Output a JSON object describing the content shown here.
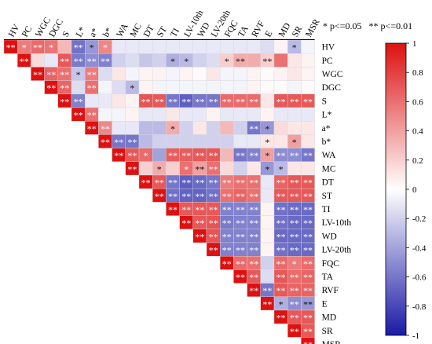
{
  "significance_legend": {
    "one_star": "* p<=0.05",
    "two_star": "** p<=0.01"
  },
  "colors": {
    "neg": "#1a1aa6",
    "mid": "#ffffff",
    "pos": "#dd1111"
  },
  "chart_data": {
    "type": "heatmap",
    "title": "",
    "variables": [
      "HV",
      "PC",
      "WGC",
      "DGC",
      "S",
      "L*",
      "a*",
      "b*",
      "WA",
      "MC",
      "DT",
      "ST",
      "TI",
      "LV-10th",
      "WD",
      "LV-20th",
      "FQC",
      "TA",
      "RVF",
      "E",
      "MD",
      "SR",
      "MSR"
    ],
    "colorbar": {
      "min": -1,
      "max": 1,
      "ticks": [
        1,
        0.8,
        0.6,
        0.4,
        0.2,
        0,
        -0.2,
        -0.4,
        -0.6,
        -0.8,
        -1
      ],
      "tick_labels": [
        "1",
        "0.8",
        "0.6",
        "0.4",
        "0.2",
        "0",
        "-0.2",
        "-0.4",
        "-0.6",
        "-0.8",
        "-1"
      ]
    },
    "matrix": [
      [
        1,
        0.55,
        0.62,
        0.58,
        0.3,
        -0.62,
        -0.45,
        0.5,
        -0.1,
        -0.1,
        -0.1,
        -0.1,
        -0.1,
        -0.1,
        -0.1,
        -0.1,
        -0.1,
        -0.1,
        -0.1,
        -0.15,
        0.05,
        -0.3,
        -0.05
      ],
      [
        null,
        1,
        0.15,
        -0.1,
        0.7,
        -0.58,
        -0.5,
        -0.55,
        -0.2,
        -0.15,
        -0.25,
        -0.2,
        -0.35,
        -0.3,
        -0.2,
        -0.15,
        0.2,
        0.35,
        0.35,
        0.2,
        0.6,
        0.1,
        0.05
      ],
      [
        null,
        null,
        1,
        0.65,
        0.6,
        -0.25,
        0.55,
        -0.15,
        0.1,
        -0.05,
        0.05,
        0.05,
        -0.05,
        0.05,
        0.02,
        0.1,
        -0.05,
        -0.05,
        0.05,
        0.02,
        0.05,
        0.1,
        0.05
      ],
      [
        null,
        null,
        null,
        1,
        0.65,
        -0.15,
        0.6,
        -0.05,
        -0.15,
        -0.3,
        0.05,
        -0.05,
        -0.05,
        -0.05,
        -0.05,
        -0.05,
        -0.05,
        -0.05,
        0.05,
        0.02,
        0.02,
        -0.05,
        0.02
      ],
      [
        null,
        null,
        null,
        null,
        1,
        -0.55,
        -0.1,
        -0.1,
        0.1,
        0.05,
        0.72,
        0.7,
        -0.6,
        -0.7,
        -0.6,
        -0.6,
        0.62,
        0.62,
        0.62,
        0.1,
        0.7,
        0.7,
        0.7
      ],
      [
        null,
        null,
        null,
        null,
        null,
        1,
        0.6,
        -0.05,
        -0.05,
        0.05,
        -0.1,
        -0.1,
        0.1,
        -0.1,
        -0.1,
        0.05,
        -0.1,
        -0.1,
        -0.1,
        0.05,
        -0.1,
        -0.1,
        -0.1
      ],
      [
        null,
        null,
        null,
        null,
        null,
        null,
        1,
        0.5,
        -0.1,
        -0.1,
        -0.3,
        -0.3,
        0.35,
        -0.2,
        0.1,
        -0.2,
        0.3,
        -0.2,
        -0.6,
        -0.45,
        0.15,
        0.1,
        0.1
      ],
      [
        null,
        null,
        null,
        null,
        null,
        null,
        null,
        1,
        -0.6,
        -0.6,
        -0.3,
        -0.2,
        -0.2,
        -0.2,
        -0.2,
        -0.2,
        -0.2,
        -0.1,
        -0.1,
        0.1,
        0.1,
        0.4,
        0.1
      ],
      [
        null,
        null,
        null,
        null,
        null,
        null,
        null,
        null,
        1,
        0.7,
        0.62,
        -0.4,
        0.68,
        0.68,
        0.7,
        0.7,
        0.3,
        -0.6,
        -0.55,
        0.4,
        -0.5,
        -0.5,
        -0.6
      ],
      [
        null,
        null,
        null,
        null,
        null,
        null,
        null,
        null,
        null,
        1,
        0.2,
        0.35,
        0.2,
        0.6,
        0.4,
        0.6,
        0.15,
        -0.2,
        0.1,
        -0.45,
        -0.3,
        0.1,
        0.1
      ],
      [
        null,
        null,
        null,
        null,
        null,
        null,
        null,
        null,
        null,
        null,
        1,
        0.7,
        -0.6,
        -0.7,
        -0.65,
        -0.6,
        0.55,
        0.6,
        0.6,
        -0.1,
        0.65,
        0.7,
        0.7
      ],
      [
        null,
        null,
        null,
        null,
        null,
        null,
        null,
        null,
        null,
        null,
        null,
        1,
        -0.62,
        -0.68,
        -0.68,
        -0.62,
        0.6,
        0.65,
        0.6,
        -0.1,
        0.7,
        0.7,
        0.7
      ],
      [
        null,
        null,
        null,
        null,
        null,
        null,
        null,
        null,
        null,
        null,
        null,
        null,
        1,
        0.7,
        0.7,
        0.7,
        -0.55,
        -0.55,
        -0.55,
        0.05,
        -0.62,
        -0.65,
        -0.65
      ],
      [
        null,
        null,
        null,
        null,
        null,
        null,
        null,
        null,
        null,
        null,
        null,
        null,
        null,
        1,
        0.7,
        0.72,
        -0.58,
        -0.55,
        -0.55,
        0.05,
        -0.62,
        -0.65,
        -0.65
      ],
      [
        null,
        null,
        null,
        null,
        null,
        null,
        null,
        null,
        null,
        null,
        null,
        null,
        null,
        null,
        1,
        0.72,
        -0.55,
        -0.55,
        -0.55,
        0.05,
        -0.65,
        -0.65,
        -0.65
      ],
      [
        null,
        null,
        null,
        null,
        null,
        null,
        null,
        null,
        null,
        null,
        null,
        null,
        null,
        null,
        null,
        1,
        -0.55,
        -0.55,
        -0.55,
        0.05,
        -0.62,
        -0.65,
        -0.65
      ],
      [
        null,
        null,
        null,
        null,
        null,
        null,
        null,
        null,
        null,
        null,
        null,
        null,
        null,
        null,
        null,
        null,
        1,
        0.62,
        0.6,
        -0.2,
        0.62,
        0.55,
        0.62
      ],
      [
        null,
        null,
        null,
        null,
        null,
        null,
        null,
        null,
        null,
        null,
        null,
        null,
        null,
        null,
        null,
        null,
        null,
        1,
        0.7,
        -0.15,
        0.7,
        0.62,
        0.65
      ],
      [
        null,
        null,
        null,
        null,
        null,
        null,
        null,
        null,
        null,
        null,
        null,
        null,
        null,
        null,
        null,
        null,
        null,
        null,
        1,
        -0.6,
        0.7,
        0.65,
        0.65
      ],
      [
        null,
        null,
        null,
        null,
        null,
        null,
        null,
        null,
        null,
        null,
        null,
        null,
        null,
        null,
        null,
        null,
        null,
        null,
        null,
        1,
        -0.35,
        -0.5,
        -0.45
      ],
      [
        null,
        null,
        null,
        null,
        null,
        null,
        null,
        null,
        null,
        null,
        null,
        null,
        null,
        null,
        null,
        null,
        null,
        null,
        null,
        null,
        1,
        0.7,
        0.7
      ],
      [
        null,
        null,
        null,
        null,
        null,
        null,
        null,
        null,
        null,
        null,
        null,
        null,
        null,
        null,
        null,
        null,
        null,
        null,
        null,
        null,
        null,
        1,
        0.7
      ],
      [
        null,
        null,
        null,
        null,
        null,
        null,
        null,
        null,
        null,
        null,
        null,
        null,
        null,
        null,
        null,
        null,
        null,
        null,
        null,
        null,
        null,
        null,
        1
      ]
    ],
    "significance": [
      [
        "**",
        "*",
        "**",
        "*",
        "",
        "**",
        "*",
        "*",
        "",
        "",
        "",
        "",
        "",
        "",
        "",
        "",
        "",
        "",
        "",
        "",
        "",
        "*",
        ""
      ],
      [
        "",
        "**",
        "",
        "",
        "**",
        "**",
        "**",
        "**",
        "",
        "",
        "",
        "",
        "*",
        "*",
        "",
        "",
        "*",
        "**",
        "",
        "**",
        "",
        "",
        ""
      ],
      [
        "",
        "",
        "**",
        "**",
        "**",
        "*",
        "**",
        "",
        "",
        "",
        "",
        "",
        "",
        "",
        "",
        "",
        "",
        "",
        "",
        "",
        "",
        "",
        ""
      ],
      [
        "",
        "",
        "",
        "**",
        "**",
        "",
        "**",
        "",
        "",
        "*",
        "",
        "",
        "",
        "",
        "",
        "",
        "",
        "",
        "",
        "",
        "",
        "",
        ""
      ],
      [
        "",
        "",
        "",
        "",
        "**",
        "**",
        "",
        "",
        "",
        "",
        "**",
        "**",
        "**",
        "**",
        "**",
        "**",
        "**",
        "**",
        "**",
        "",
        "**",
        "**",
        "**"
      ],
      [
        "",
        "",
        "",
        "",
        "",
        "**",
        "**",
        "",
        "",
        "",
        "",
        "",
        "",
        "",
        "",
        "",
        "",
        "",
        "",
        "",
        "",
        "",
        ""
      ],
      [
        "",
        "",
        "",
        "",
        "",
        "",
        "**",
        "**",
        "",
        "",
        "",
        "",
        "*",
        "",
        "",
        "",
        "",
        "",
        "**",
        "*",
        "",
        "",
        ""
      ],
      [
        "",
        "",
        "",
        "",
        "",
        "",
        "",
        "**",
        "**",
        "**",
        "",
        "",
        "",
        "",
        "",
        "",
        "",
        "",
        "",
        "*",
        "",
        "*",
        ""
      ],
      [
        "",
        "",
        "",
        "",
        "",
        "",
        "",
        "",
        "**",
        "**",
        "*",
        "",
        "**",
        "**",
        "**",
        "**",
        "",
        "**",
        "**",
        "*",
        "**",
        "**",
        "**"
      ],
      [
        "",
        "",
        "",
        "",
        "",
        "",
        "",
        "",
        "",
        "**",
        "",
        "*",
        "",
        "*",
        "**",
        "**",
        "",
        "",
        "",
        "*",
        "*",
        "",
        ""
      ],
      [
        "",
        "",
        "",
        "",
        "",
        "",
        "",
        "",
        "",
        "",
        "**",
        "**",
        "**",
        "**",
        "**",
        "**",
        "**",
        "**",
        "**",
        "",
        "**",
        "**",
        "**"
      ],
      [
        "",
        "",
        "",
        "",
        "",
        "",
        "",
        "",
        "",
        "",
        "",
        "**",
        "**",
        "**",
        "**",
        "**",
        "**",
        "**",
        "**",
        "",
        "**",
        "**",
        "**"
      ],
      [
        "",
        "",
        "",
        "",
        "",
        "",
        "",
        "",
        "",
        "",
        "",
        "",
        "**",
        "**",
        "**",
        "**",
        "**",
        "**",
        "**",
        "",
        "**",
        "**",
        "**"
      ],
      [
        "",
        "",
        "",
        "",
        "",
        "",
        "",
        "",
        "",
        "",
        "",
        "",
        "",
        "**",
        "**",
        "**",
        "**",
        "**",
        "**",
        "",
        "**",
        "**",
        "**"
      ],
      [
        "",
        "",
        "",
        "",
        "",
        "",
        "",
        "",
        "",
        "",
        "",
        "",
        "",
        "",
        "**",
        "**",
        "**",
        "**",
        "**",
        "",
        "**",
        "**",
        "**"
      ],
      [
        "",
        "",
        "",
        "",
        "",
        "",
        "",
        "",
        "",
        "",
        "",
        "",
        "",
        "",
        "",
        "**",
        "**",
        "**",
        "**",
        "",
        "**",
        "**",
        "**"
      ],
      [
        "",
        "",
        "",
        "",
        "",
        "",
        "",
        "",
        "",
        "",
        "",
        "",
        "",
        "",
        "",
        "",
        "**",
        "**",
        "**",
        "",
        "**",
        "*",
        "**"
      ],
      [
        "",
        "",
        "",
        "",
        "",
        "",
        "",
        "",
        "",
        "",
        "",
        "",
        "",
        "",
        "",
        "",
        "",
        "**",
        "**",
        "",
        "**",
        "**",
        "**"
      ],
      [
        "",
        "",
        "",
        "",
        "",
        "",
        "",
        "",
        "",
        "",
        "",
        "",
        "",
        "",
        "",
        "",
        "",
        "",
        "**",
        "**",
        "**",
        "**",
        "**"
      ],
      [
        "",
        "",
        "",
        "",
        "",
        "",
        "",
        "",
        "",
        "",
        "",
        "",
        "",
        "",
        "",
        "",
        "",
        "",
        "",
        "**",
        "*",
        "**",
        "**"
      ],
      [
        "",
        "",
        "",
        "",
        "",
        "",
        "",
        "",
        "",
        "",
        "",
        "",
        "",
        "",
        "",
        "",
        "",
        "",
        "",
        "",
        "**",
        "**",
        "**"
      ],
      [
        "",
        "",
        "",
        "",
        "",
        "",
        "",
        "",
        "",
        "",
        "",
        "",
        "",
        "",
        "",
        "",
        "",
        "",
        "",
        "",
        "",
        "**",
        "**"
      ],
      [
        "",
        "",
        "",
        "",
        "",
        "",
        "",
        "",
        "",
        "",
        "",
        "",
        "",
        "",
        "",
        "",
        "",
        "",
        "",
        "",
        "",
        "",
        "**"
      ]
    ]
  }
}
